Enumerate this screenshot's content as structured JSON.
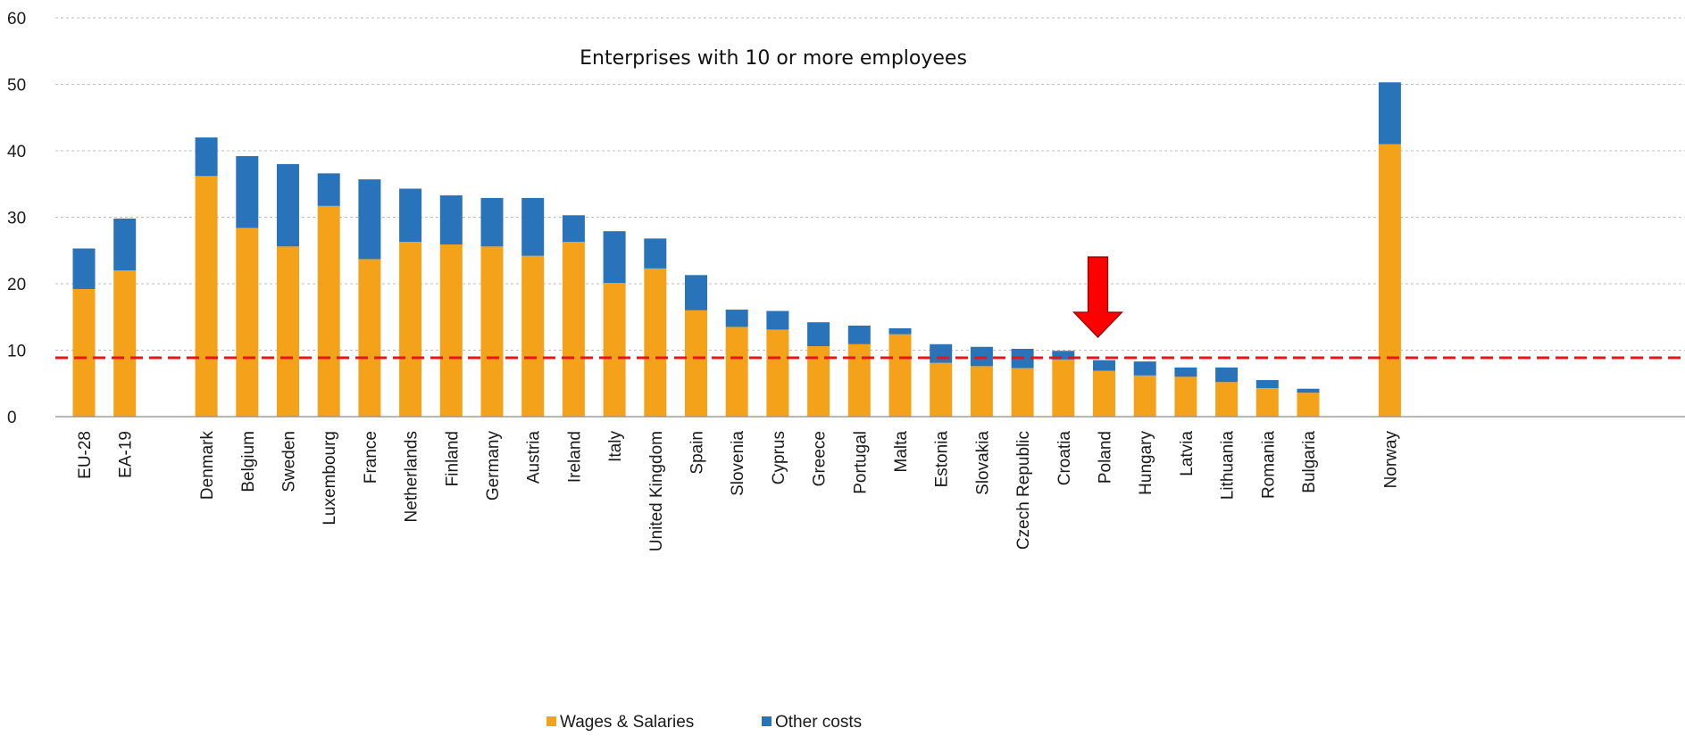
{
  "chart_data": {
    "type": "bar",
    "stacked": true,
    "subtitle": "Enterprises with 10 or more employees",
    "categories": [
      "EU-28",
      "EA-19",
      "",
      "Denmark",
      "Belgium",
      "Sweden",
      "Luxembourg",
      "France",
      "Netherlands",
      "Finland",
      "Germany",
      "Austria",
      "Ireland",
      "Italy",
      "United Kingdom",
      "Spain",
      "Slovenia",
      "Cyprus",
      "Greece",
      "Portugal",
      "Malta",
      "Estonia",
      "Slovakia",
      "Czech Republic",
      "Croatia",
      "Poland",
      "Hungary",
      "Latvia",
      "Lithuania",
      "Romania",
      "Bulgaria",
      "",
      "Norway"
    ],
    "series": [
      {
        "name": "Wages & Salaries",
        "color": "#F5A21B",
        "values": [
          19.2,
          22.0,
          null,
          36.2,
          28.4,
          25.6,
          31.7,
          23.7,
          26.3,
          25.9,
          25.6,
          24.2,
          26.3,
          20.1,
          22.3,
          16.0,
          13.5,
          13.1,
          10.6,
          10.9,
          12.4,
          8.1,
          7.6,
          7.3,
          8.6,
          6.9,
          6.2,
          6.0,
          5.2,
          4.3,
          3.6,
          null,
          41.0
        ]
      },
      {
        "name": "Other costs",
        "color": "#2873B9",
        "values": [
          6.1,
          7.8,
          null,
          5.8,
          10.8,
          12.4,
          4.9,
          12.0,
          8.0,
          7.4,
          7.3,
          8.7,
          4.0,
          7.8,
          4.5,
          5.3,
          2.6,
          2.8,
          3.6,
          2.8,
          0.9,
          2.8,
          2.9,
          2.9,
          1.3,
          1.6,
          2.1,
          1.4,
          2.2,
          1.2,
          0.6,
          null,
          9.3
        ]
      }
    ],
    "ylim": [
      0,
      60
    ],
    "yticks": [
      0,
      10,
      20,
      30,
      40,
      50,
      60
    ],
    "grid": "horizontal-dashed",
    "reference_line": {
      "value": 8.86,
      "color": "#E8131B",
      "style": "dashed"
    },
    "highlight_arrow": {
      "category": "Poland",
      "color": "#FF0000"
    },
    "legend": {
      "position": "bottom-center"
    }
  }
}
